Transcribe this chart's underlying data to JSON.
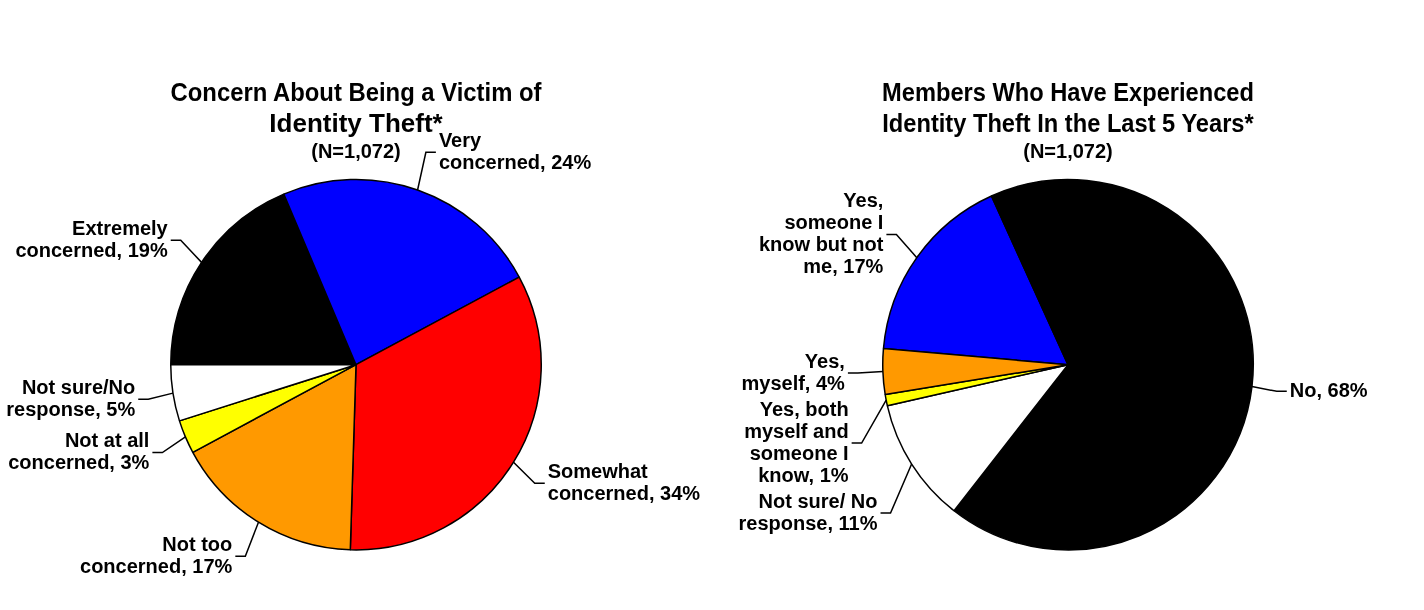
{
  "chart_data": [
    {
      "type": "pie",
      "title": "Concern About Being a Victim of Identity Theft*",
      "subtitle": "(N=1,072)",
      "categories": [
        "Extremely concerned",
        "Very concerned",
        "Somewhat concerned",
        "Not too concerned",
        "Not at all concerned",
        "Not sure/No response"
      ],
      "values": [
        19,
        24,
        34,
        17,
        3,
        5
      ],
      "colors": [
        "#000000",
        "#0000ff",
        "#ff0000",
        "#ff9900",
        "#ffff00",
        "#ffffff"
      ],
      "value_labels": [
        "19%",
        "24%",
        "34%",
        "17%",
        "3%",
        "5%"
      ],
      "legend": false
    },
    {
      "type": "pie",
      "title": "Members Who Have Experienced Identity Theft In the Last 5 Years*",
      "subtitle": "(N=1,072)",
      "categories": [
        "Yes, someone I know but not me",
        "No",
        "Not sure/ No response",
        "Yes, both myself and someone I know",
        "Yes, myself"
      ],
      "values": [
        17,
        68,
        11,
        1,
        4
      ],
      "colors": [
        "#0000ff",
        "#000000",
        "#ffffff",
        "#ffff00",
        "#ff9900"
      ],
      "value_labels": [
        "17%",
        "68%",
        "11%",
        "1%",
        "4%"
      ],
      "legend": false
    }
  ]
}
